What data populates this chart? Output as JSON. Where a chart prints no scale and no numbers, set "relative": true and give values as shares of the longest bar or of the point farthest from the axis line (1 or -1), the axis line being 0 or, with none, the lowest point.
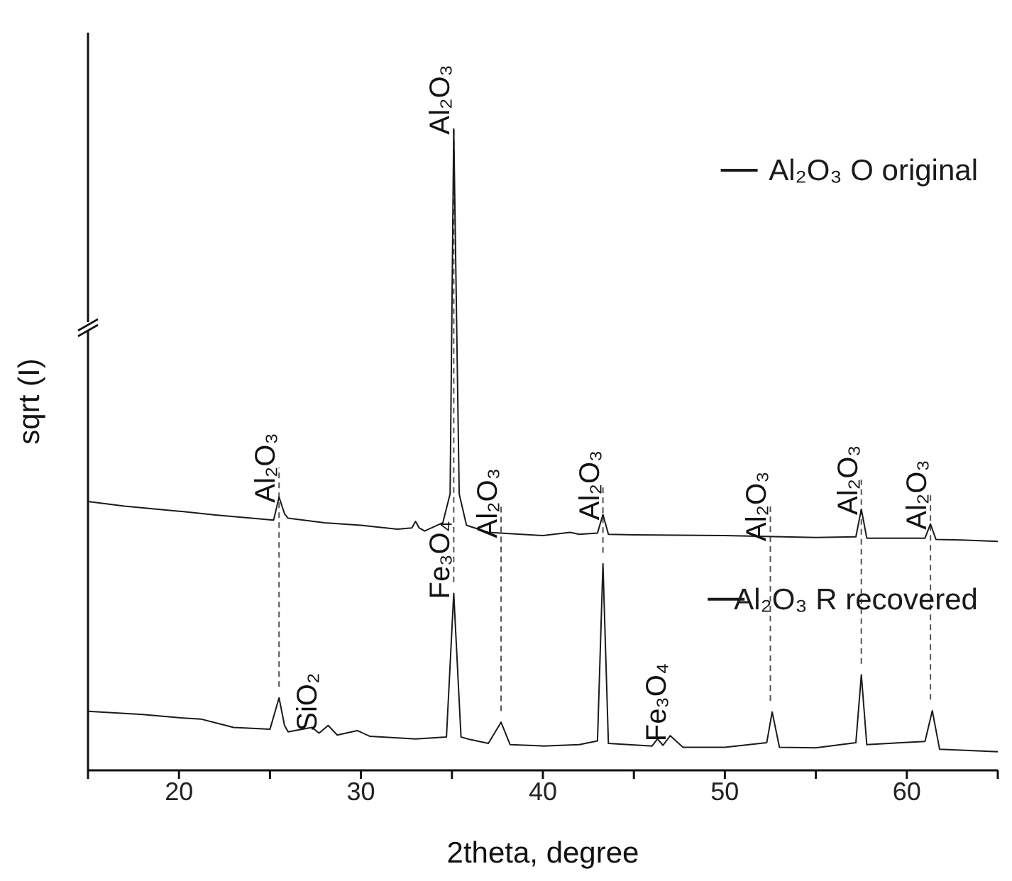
{
  "chart_data": {
    "type": "line",
    "relative": true,
    "xlabel": "2theta, degree",
    "ylabel": "sqrt (I)",
    "xlim": [
      15,
      65
    ],
    "xticks": [
      {
        "value": 15,
        "label": null
      },
      20,
      {
        "value": 25,
        "label": null
      },
      30,
      {
        "value": 35,
        "label": null
      },
      40,
      {
        "value": 45,
        "label": null
      },
      50,
      {
        "value": 55,
        "label": null
      },
      60,
      {
        "value": 65,
        "label": null
      }
    ],
    "legend": "right",
    "grid": false,
    "marker": "none",
    "line_style": "solid",
    "series": [
      {
        "name": "Al₂O₃ O original",
        "color": "#1a1a1a",
        "x": [
          15,
          17,
          20,
          22,
          24,
          25.2,
          25.5,
          25.8,
          26,
          28,
          30,
          32,
          32.8,
          33,
          33.2,
          33.5,
          34.5,
          34.9,
          35.1,
          35.4,
          35.8,
          37,
          40,
          41.5,
          42,
          43,
          43.3,
          43.6,
          45,
          50,
          55,
          57.2,
          57.5,
          57.8,
          60,
          61,
          61.3,
          61.6,
          63,
          65
        ],
        "values": [
          0.419,
          0.412,
          0.404,
          0.398,
          0.393,
          0.39,
          0.426,
          0.4,
          0.393,
          0.386,
          0.382,
          0.376,
          0.378,
          0.388,
          0.378,
          0.373,
          0.386,
          0.431,
          1,
          0.431,
          0.382,
          0.371,
          0.366,
          0.371,
          0.368,
          0.37,
          0.399,
          0.368,
          0.367,
          0.366,
          0.363,
          0.364,
          0.407,
          0.362,
          0.362,
          0.362,
          0.384,
          0.36,
          0.359,
          0.357
        ]
      },
      {
        "name": "Al₂O₃ R recovered",
        "color": "#1a1a1a",
        "x": [
          15,
          18,
          20,
          21.2,
          23,
          25,
          25.5,
          25.8,
          26,
          27.3,
          27.7,
          28.2,
          28.7,
          29.8,
          30.5,
          33,
          34.7,
          35.1,
          35.5,
          36,
          37,
          37.7,
          38.2,
          40,
          42,
          43,
          43.3,
          43.6,
          46,
          46.3,
          46.6,
          47,
          47.7,
          50,
          52.3,
          52.6,
          53,
          55,
          57.2,
          57.5,
          57.8,
          59.7,
          61,
          61.4,
          61.8,
          65
        ],
        "values": [
          0.092,
          0.087,
          0.082,
          0.08,
          0.067,
          0.064,
          0.113,
          0.07,
          0.06,
          0.067,
          0.058,
          0.07,
          0.055,
          0.062,
          0.053,
          0.049,
          0.052,
          0.276,
          0.052,
          0.048,
          0.042,
          0.075,
          0.04,
          0.038,
          0.04,
          0.046,
          0.322,
          0.042,
          0.038,
          0.049,
          0.039,
          0.054,
          0.036,
          0.036,
          0.043,
          0.091,
          0.036,
          0.035,
          0.043,
          0.149,
          0.04,
          0.043,
          0.045,
          0.093,
          0.033,
          0.029
        ]
      }
    ],
    "ref_lines": [
      {
        "axis": "x",
        "value": 25.5,
        "line_style": "dashed",
        "color": "#555555"
      },
      {
        "axis": "x",
        "value": 35.1,
        "line_style": "dashed",
        "color": "#555555"
      },
      {
        "axis": "x",
        "value": 37.7,
        "line_style": "dashed",
        "color": "#555555"
      },
      {
        "axis": "x",
        "value": 43.3,
        "line_style": "dashed",
        "color": "#555555"
      },
      {
        "axis": "x",
        "value": 52.5,
        "line_style": "dashed",
        "color": "#555555"
      },
      {
        "axis": "x",
        "value": 57.5,
        "line_style": "dashed",
        "color": "#555555"
      },
      {
        "axis": "x",
        "value": 61.3,
        "line_style": "dashed",
        "color": "#555555"
      }
    ],
    "annotations": [
      {
        "text": "Al₂O₃",
        "x": 25.5,
        "y": 0.426
      },
      {
        "text": "Al₂O₃",
        "x": 35.1,
        "y": 1
      },
      {
        "text": "Al₂O₃",
        "x": 37.7,
        "y": 0.371
      },
      {
        "text": "Al₂O₃",
        "x": 43.3,
        "y": 0.399
      },
      {
        "text": "Al₂O₃",
        "x": 52.5,
        "y": 0.366
      },
      {
        "text": "Al₂O₃",
        "x": 57.5,
        "y": 0.407
      },
      {
        "text": "Al₂O₃",
        "x": 61.3,
        "y": 0.384
      },
      {
        "text": "SiO₂",
        "x": 27.8,
        "y": 0.07
      },
      {
        "text": "Fe₃O₄",
        "x": 35.1,
        "y": 0.276
      },
      {
        "text": "Fe₃O₄",
        "x": 47,
        "y": 0.054
      }
    ]
  }
}
